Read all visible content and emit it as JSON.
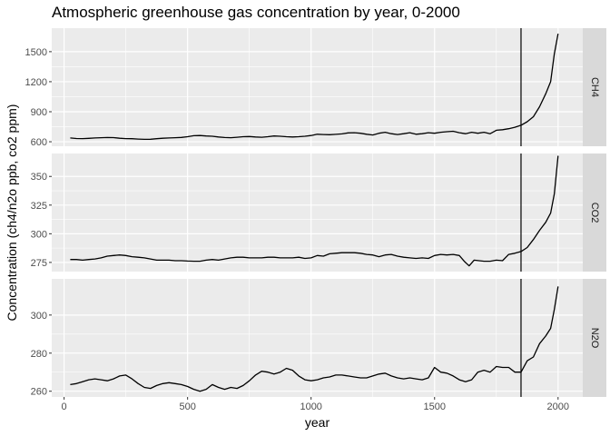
{
  "chart_data": {
    "type": "line",
    "title": "Atmospheric greenhouse gas concentration by year, 0-2000",
    "xlabel": "year",
    "ylabel": "Concentration (ch4/n2o ppb, co2 ppm)",
    "xlim": [
      -50,
      2100
    ],
    "xticks": [
      0,
      500,
      1000,
      1500,
      2000
    ],
    "vline_x": 1850,
    "grid": true,
    "line_color": "#000000",
    "panel_bg": "#ebebeb",
    "strip_bg": "#d9d9d9",
    "panels": [
      {
        "label": "CH4",
        "ylim": [
          555,
          1735
        ],
        "yticks": [
          600,
          900,
          1200,
          1500
        ],
        "x": [
          25,
          50,
          75,
          100,
          125,
          150,
          175,
          200,
          225,
          250,
          275,
          300,
          325,
          350,
          375,
          400,
          425,
          450,
          475,
          500,
          525,
          550,
          575,
          600,
          625,
          650,
          675,
          700,
          725,
          750,
          775,
          800,
          825,
          850,
          875,
          900,
          925,
          950,
          975,
          1000,
          1025,
          1050,
          1075,
          1100,
          1125,
          1150,
          1175,
          1200,
          1225,
          1250,
          1275,
          1300,
          1325,
          1350,
          1375,
          1400,
          1425,
          1450,
          1475,
          1500,
          1525,
          1550,
          1575,
          1600,
          1625,
          1650,
          1675,
          1700,
          1725,
          1750,
          1775,
          1800,
          1825,
          1850,
          1875,
          1900,
          1925,
          1950,
          1970,
          1985,
          2000
        ],
        "y": [
          638,
          632,
          631,
          634,
          638,
          640,
          642,
          641,
          635,
          631,
          630,
          627,
          624,
          625,
          630,
          635,
          638,
          640,
          643,
          650,
          660,
          662,
          658,
          655,
          648,
          642,
          640,
          645,
          650,
          652,
          648,
          645,
          650,
          658,
          655,
          650,
          648,
          650,
          655,
          662,
          675,
          672,
          670,
          674,
          678,
          688,
          690,
          685,
          675,
          668,
          685,
          695,
          680,
          672,
          680,
          690,
          675,
          680,
          690,
          685,
          695,
          700,
          705,
          690,
          680,
          695,
          685,
          695,
          680,
          715,
          720,
          730,
          745,
          765,
          800,
          850,
          950,
          1080,
          1200,
          1480,
          1680
        ]
      },
      {
        "label": "CO2",
        "ylim": [
          267,
          370
        ],
        "yticks": [
          275,
          300,
          325,
          350
        ],
        "x": [
          25,
          50,
          75,
          100,
          125,
          150,
          175,
          200,
          225,
          250,
          275,
          300,
          325,
          350,
          375,
          400,
          425,
          450,
          475,
          500,
          525,
          550,
          575,
          600,
          625,
          650,
          675,
          700,
          725,
          750,
          775,
          800,
          825,
          850,
          875,
          900,
          925,
          950,
          975,
          1000,
          1025,
          1050,
          1075,
          1100,
          1125,
          1150,
          1175,
          1200,
          1225,
          1250,
          1275,
          1300,
          1325,
          1350,
          1375,
          1400,
          1425,
          1450,
          1475,
          1500,
          1525,
          1550,
          1575,
          1600,
          1620,
          1640,
          1660,
          1680,
          1700,
          1725,
          1750,
          1775,
          1800,
          1825,
          1850,
          1875,
          1900,
          1925,
          1950,
          1970,
          1985,
          2000
        ],
        "y": [
          277.5,
          277.5,
          277,
          277.5,
          278,
          279,
          280.5,
          281,
          281.5,
          281,
          280,
          279.5,
          279,
          278,
          277,
          277,
          277,
          276.5,
          276.5,
          276.2,
          276,
          276,
          277,
          277.5,
          277,
          278,
          279,
          279.5,
          279.5,
          279,
          279,
          279,
          279.5,
          279.5,
          279,
          279,
          279,
          279.5,
          278.5,
          279,
          281,
          280.5,
          282.5,
          283,
          283.5,
          283.5,
          283.5,
          283,
          282,
          281.5,
          280,
          281.5,
          282,
          280.5,
          279.5,
          279,
          278.5,
          279,
          278.5,
          281,
          282,
          281.5,
          282,
          281,
          276,
          272,
          277,
          276.5,
          276,
          276,
          277,
          276.5,
          282,
          283,
          284.5,
          288,
          295,
          303,
          310,
          318,
          335,
          368
        ]
      },
      {
        "label": "N2O",
        "ylim": [
          257,
          319
        ],
        "yticks": [
          260,
          280,
          300
        ],
        "x": [
          25,
          50,
          75,
          100,
          125,
          150,
          175,
          200,
          225,
          250,
          275,
          300,
          325,
          350,
          375,
          400,
          425,
          450,
          475,
          500,
          525,
          550,
          575,
          600,
          625,
          650,
          675,
          700,
          725,
          750,
          775,
          800,
          825,
          850,
          875,
          900,
          925,
          950,
          975,
          1000,
          1025,
          1050,
          1075,
          1100,
          1125,
          1150,
          1175,
          1200,
          1225,
          1250,
          1275,
          1300,
          1325,
          1350,
          1375,
          1400,
          1425,
          1450,
          1475,
          1500,
          1525,
          1550,
          1575,
          1600,
          1625,
          1650,
          1675,
          1700,
          1725,
          1750,
          1775,
          1800,
          1825,
          1850,
          1875,
          1900,
          1925,
          1950,
          1970,
          1985,
          2000
        ],
        "y": [
          263.5,
          264,
          265,
          266,
          266.5,
          266,
          265.5,
          266.5,
          268,
          268.5,
          266.5,
          264,
          262,
          261.5,
          263,
          264,
          264.5,
          264,
          263.5,
          262.5,
          261,
          260,
          261,
          263.5,
          262,
          261,
          262,
          261.5,
          263,
          265.5,
          268.5,
          270.5,
          270,
          269,
          270,
          272,
          271,
          268,
          266,
          265.5,
          266,
          267,
          267.5,
          268.5,
          268.5,
          268,
          267.5,
          267,
          267,
          268,
          269,
          269.5,
          268,
          267,
          266.5,
          267,
          266.5,
          266,
          267,
          272.5,
          270,
          269.5,
          268,
          266,
          265,
          266,
          270,
          271,
          270,
          273,
          272.5,
          272.5,
          270,
          270,
          276,
          278,
          285,
          289,
          293,
          303,
          315
        ]
      }
    ]
  }
}
